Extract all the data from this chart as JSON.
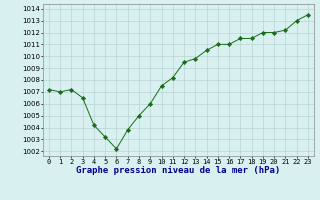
{
  "x": [
    0,
    1,
    2,
    3,
    4,
    5,
    6,
    7,
    8,
    9,
    10,
    11,
    12,
    13,
    14,
    15,
    16,
    17,
    18,
    19,
    20,
    21,
    22,
    23
  ],
  "y": [
    1007.2,
    1007.0,
    1007.2,
    1006.5,
    1004.2,
    1003.2,
    1002.2,
    1003.8,
    1005.0,
    1006.0,
    1007.5,
    1008.2,
    1009.5,
    1009.8,
    1010.5,
    1011.0,
    1011.0,
    1011.5,
    1011.5,
    1012.0,
    1012.0,
    1012.2,
    1013.0,
    1013.5
  ],
  "line_color": "#1a6b1a",
  "marker": "D",
  "marker_size": 2.2,
  "bg_color": "#d9f0f0",
  "grid_color": "#b8d4d4",
  "label_color": "#00008b",
  "ylabel_ticks": [
    1002,
    1003,
    1004,
    1005,
    1006,
    1007,
    1008,
    1009,
    1010,
    1011,
    1012,
    1013,
    1014
  ],
  "ylim": [
    1001.6,
    1014.4
  ],
  "xlim": [
    -0.5,
    23.5
  ],
  "xlabel": "Graphe pression niveau de la mer (hPa)",
  "tick_label_fontsize": 5.0,
  "xlabel_fontsize": 6.5,
  "linewidth": 0.7
}
